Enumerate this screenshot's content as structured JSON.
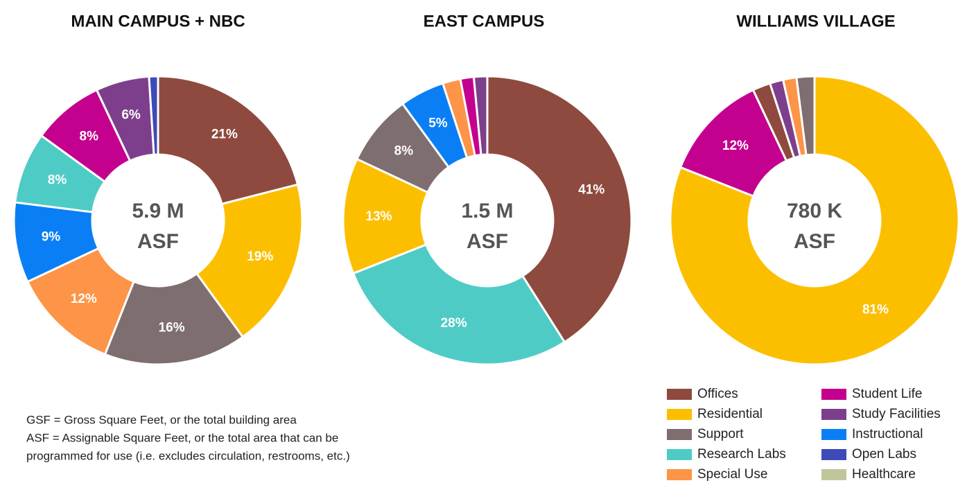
{
  "chart_data": [
    {
      "type": "donut",
      "title": "MAIN CAMPUS + NBC",
      "center_label": [
        "5.9 M",
        "ASF"
      ],
      "categories": [
        "Offices",
        "Residential",
        "Support",
        "Special Use",
        "Instructional",
        "Research Labs",
        "Student Life",
        "Study Facilities",
        "Open Labs"
      ],
      "values": [
        21,
        19,
        16,
        12,
        9,
        8,
        8,
        6,
        1
      ],
      "value_labels": [
        "21%",
        "19%",
        "16%",
        "12%",
        "9%",
        "8%",
        "8%",
        "6%",
        null
      ]
    },
    {
      "type": "donut",
      "title": "EAST CAMPUS",
      "center_label": [
        "1.5 M",
        "ASF"
      ],
      "categories": [
        "Offices",
        "Research Labs",
        "Residential",
        "Support",
        "Instructional",
        "Special Use",
        "Student Life",
        "Study Facilities"
      ],
      "values": [
        41,
        28,
        13,
        8,
        5,
        2,
        1.5,
        1.5
      ],
      "value_labels": [
        "41%",
        "28%",
        "13%",
        "8%",
        "5%",
        null,
        null,
        null
      ]
    },
    {
      "type": "donut",
      "title": "WILLIAMS VILLAGE",
      "center_label": [
        "780 K",
        "ASF"
      ],
      "categories": [
        "Residential",
        "Student Life",
        "Offices",
        "Study Facilities",
        "Special Use",
        "Support"
      ],
      "values": [
        81,
        12,
        2,
        1.5,
        1.5,
        2
      ],
      "value_labels": [
        "81%",
        "12%",
        null,
        null,
        null,
        null
      ]
    }
  ],
  "legend": [
    {
      "name": "Offices",
      "color": "#8e4a3e"
    },
    {
      "name": "Residential",
      "color": "#fcbf00"
    },
    {
      "name": "Support",
      "color": "#7f6e6f"
    },
    {
      "name": "Research Labs",
      "color": "#4fcbc6"
    },
    {
      "name": "Special Use",
      "color": "#fd9447"
    },
    {
      "name": "Student Life",
      "color": "#c4008e"
    },
    {
      "name": "Study Facilities",
      "color": "#7d3f8c"
    },
    {
      "name": "Instructional",
      "color": "#0a7ff5"
    },
    {
      "name": "Open Labs",
      "color": "#3d4bb8"
    },
    {
      "name": "Healthcare",
      "color": "#c1c59b"
    }
  ],
  "notes": [
    "GSF = Gross Square Feet, or the total building area",
    "ASF = Assignable Square Feet, or the total area that can be",
    "programmed for use (i.e. excludes circulation, restrooms, etc.)"
  ]
}
